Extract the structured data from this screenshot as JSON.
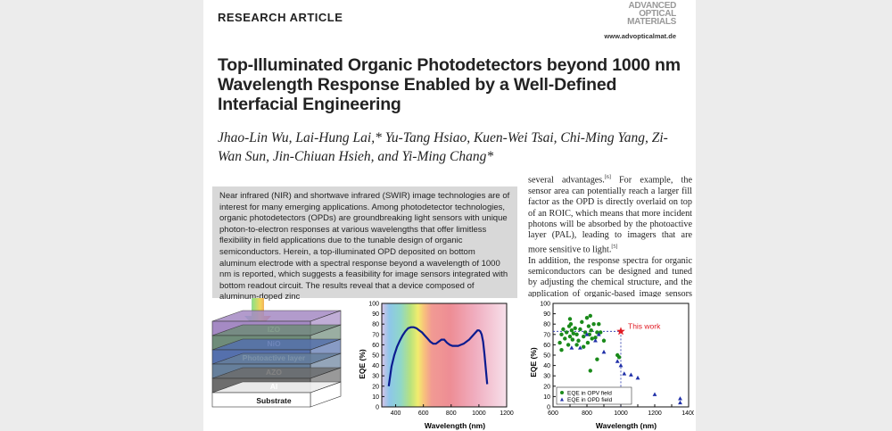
{
  "header": {
    "section_label": "RESEARCH ARTICLE",
    "logo": [
      "ADVANCED",
      "OPTICAL",
      "MATERIALS"
    ],
    "journal_url": "www.advopticalmat.de"
  },
  "article": {
    "title": "Top-Illuminated Organic Photodetectors beyond 1000 nm Wavelength Response Enabled by a Well-Defined Interfacial Engineering",
    "authors": "Jhao-Lin Wu, Lai-Hung Lai,* Yu-Tang Hsiao, Kuen-Wei Tsai, Chi-Ming Yang, Zi-Wan Sun, Jin-Chiuan Hsieh, and Yi-Ming Chang*",
    "abstract": "Near infrared (NIR) and shortwave infrared (SWIR) image technologies are of interest for many emerging applications. Among photodetector technologies, organic photodetectors (OPDs) are groundbreaking light sensors with unique photon-to-electron responses at various wavelengths that offer limitless flexibility in field applications due to the tunable design of organic semiconductors. Herein, a top-illuminated OPD deposited on bottom aluminum electrode with a spectral response beyond a wavelength of 1000 nm is reported, which suggests a feasibility for image sensors integrated with bottom readout circuit. The results reveal that a device composed of aluminum-doped zinc",
    "body_p1_start": "several advantages.",
    "body_p1_ref": "[6]",
    "body_p1_rest": " For example, the sensor area can potentially reach a larger fill factor as the OPD is directly overlaid on top of an ROIC, which means that more incident photons will be absorbed by the photoactive layer (PAL), leading to imagers that are more sensitive to light.",
    "body_p1_ref2": "[5]",
    "body_p2": "In addition, the response spectra for organic semiconductors can be designed and tuned by adjusting the chemical structure, and the application of organic-based image sensors can be easily extended by"
  },
  "device_stack": {
    "layers": [
      {
        "label": "IZO",
        "color": "#a58ac4"
      },
      {
        "label": "NiO",
        "color": "#6f8c7a"
      },
      {
        "label": "Photoactive layer",
        "color": "#5570ad"
      },
      {
        "label": "AZO",
        "color": "#667f9b"
      },
      {
        "label": "Al",
        "color": "#6d6d6d"
      },
      {
        "label": "Substrate",
        "color": "#ffffff"
      }
    ]
  },
  "chart_data": [
    {
      "type": "line",
      "title": "",
      "xlabel": "Wavelength (nm)",
      "ylabel": "EQE (%)",
      "xlim": [
        300,
        1200
      ],
      "ylim": [
        0,
        100
      ],
      "xticks": [
        400,
        600,
        800,
        1000,
        1200
      ],
      "yticks": [
        0,
        10,
        20,
        30,
        40,
        50,
        60,
        70,
        80,
        90,
        100
      ],
      "series": [
        {
          "x": [
            350,
            370,
            390,
            410,
            430,
            450,
            470,
            490,
            510,
            530,
            550,
            570,
            590,
            610,
            630,
            650,
            670,
            690,
            710,
            730,
            750,
            770,
            790,
            810,
            830,
            850,
            870,
            890,
            910,
            930,
            950,
            970,
            990,
            1000,
            1010,
            1020,
            1030,
            1040,
            1050,
            1060
          ],
          "y": [
            20,
            39,
            50,
            58,
            64,
            69,
            73,
            76,
            77,
            77,
            76,
            74,
            72,
            69,
            66,
            63,
            61,
            61,
            63,
            65,
            65,
            62,
            60,
            59,
            59,
            59,
            60,
            61,
            63,
            65,
            68,
            71,
            74,
            74,
            73,
            70,
            63,
            51,
            36,
            22
          ]
        }
      ]
    },
    {
      "type": "scatter",
      "title": "",
      "xlabel": "Wavelength (nm)",
      "ylabel": "EQE (%)",
      "xlim": [
        600,
        1400
      ],
      "ylim": [
        0,
        100
      ],
      "xticks": [
        600,
        700,
        800,
        900,
        1000,
        1100,
        1200,
        1300,
        1400
      ],
      "yticks": [
        0,
        10,
        20,
        30,
        40,
        50,
        60,
        70,
        80,
        90,
        100
      ],
      "annotation": "This work",
      "highlight": {
        "x": 1000,
        "y": 73
      },
      "legend_position": "bottom-left",
      "series": [
        {
          "name": "EQE in OPV field",
          "color": "#1a8a1a",
          "x": [
            640,
            650,
            660,
            670,
            680,
            690,
            695,
            700,
            705,
            710,
            715,
            720,
            730,
            740,
            750,
            760,
            770,
            780,
            790,
            800,
            805,
            810,
            815,
            820,
            825,
            830,
            840,
            850,
            860,
            870,
            700,
            740,
            780,
            820,
            860,
            880,
            900,
            980,
            990,
            650
          ],
          "y": [
            62,
            70,
            75,
            66,
            72,
            60,
            78,
            68,
            80,
            74,
            65,
            71,
            76,
            70,
            64,
            75,
            82,
            68,
            72,
            86,
            62,
            78,
            70,
            88,
            74,
            66,
            80,
            67,
            72,
            80,
            85,
            60,
            58,
            35,
            46,
            72,
            64,
            50,
            48,
            55
          ]
        },
        {
          "name": "EQE in OPD field",
          "color": "#1f2fa8",
          "x": [
            710,
            760,
            800,
            850,
            870,
            900,
            980,
            1000,
            1020,
            1060,
            1100,
            1200,
            1350,
            1350
          ],
          "y": [
            57,
            57,
            70,
            64,
            70,
            53,
            44,
            40,
            32,
            31,
            28,
            12,
            8,
            4
          ]
        }
      ]
    }
  ],
  "colors": {
    "page": "#ffffff",
    "margin": "#ececec",
    "abstract_box": "#d8d8d8",
    "eqe_line": "#0b1b8f",
    "this_work": "#e01b24"
  }
}
